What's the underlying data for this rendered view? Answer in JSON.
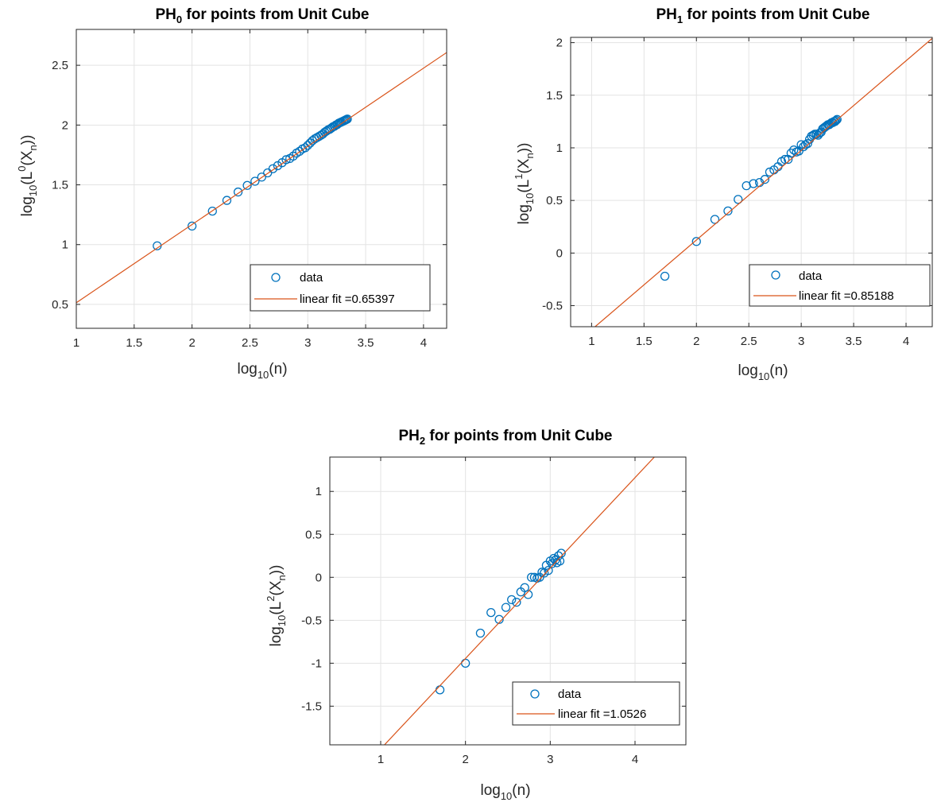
{
  "chart_data": [
    {
      "type": "scatter",
      "title_main": "PH",
      "title_sub": "0",
      "title_rest": " for points from Unit Cube",
      "xlabel_main": "log",
      "xlabel_sub": "10",
      "xlabel_rest": "(n)",
      "ylabel_main": "log",
      "ylabel_sub": "10",
      "ylabel_mid": "(L",
      "ylabel_sup": "0",
      "ylabel_after": "(X",
      "ylabel_sub2": "n",
      "ylabel_end": "))",
      "xlim": [
        1,
        4.2
      ],
      "ylim": [
        0.3,
        2.8
      ],
      "xticks": [
        1,
        1.5,
        2,
        2.5,
        3,
        3.5,
        4
      ],
      "xtick_labels": [
        "1",
        "1.5",
        "2",
        "2.5",
        "3",
        "3.5",
        "4"
      ],
      "yticks": [
        0.5,
        1,
        1.5,
        2,
        2.5
      ],
      "ytick_labels": [
        "0.5",
        "1",
        "1.5",
        "2",
        "2.5"
      ],
      "grid": true,
      "legend_position": "bottom-right",
      "legend": [
        "data",
        "linear fit =0.65397"
      ],
      "series": [
        {
          "kind": "data",
          "color": "#0072BD",
          "x": [
            1.699,
            2.0,
            2.176,
            2.301,
            2.398,
            2.477,
            2.544,
            2.602,
            2.653,
            2.699,
            2.74,
            2.778,
            2.813,
            2.845,
            2.875,
            2.903,
            2.929,
            2.954,
            2.978,
            3.0,
            3.021,
            3.041,
            3.061,
            3.079,
            3.097,
            3.114,
            3.13,
            3.146,
            3.161,
            3.176,
            3.19,
            3.204,
            3.217,
            3.23,
            3.243,
            3.255,
            3.267,
            3.279,
            3.29,
            3.301,
            3.312,
            3.322,
            3.332,
            3.342
          ],
          "y": [
            0.99,
            1.155,
            1.28,
            1.37,
            1.44,
            1.495,
            1.53,
            1.565,
            1.6,
            1.635,
            1.66,
            1.685,
            1.71,
            1.72,
            1.74,
            1.765,
            1.78,
            1.8,
            1.81,
            1.83,
            1.85,
            1.87,
            1.885,
            1.895,
            1.905,
            1.915,
            1.925,
            1.94,
            1.95,
            1.96,
            1.965,
            1.975,
            1.985,
            1.99,
            2.0,
            2.005,
            2.015,
            2.02,
            2.025,
            2.03,
            2.035,
            2.04,
            2.045,
            2.05
          ]
        },
        {
          "kind": "fit",
          "color": "#D95319",
          "slope": 0.65397,
          "intercept": -0.14
        }
      ]
    },
    {
      "type": "scatter",
      "title_main": "PH",
      "title_sub": "1",
      "title_rest": " for points from Unit Cube",
      "xlabel_main": "log",
      "xlabel_sub": "10",
      "xlabel_rest": "(n)",
      "ylabel_main": "log",
      "ylabel_sub": "10",
      "ylabel_mid": "(L",
      "ylabel_sup": "1",
      "ylabel_after": "(X",
      "ylabel_sub2": "n",
      "ylabel_end": "))",
      "xlim": [
        0.8,
        4.25
      ],
      "ylim": [
        -0.7,
        2.05
      ],
      "xticks": [
        1,
        1.5,
        2,
        2.5,
        3,
        3.5,
        4
      ],
      "xtick_labels": [
        "1",
        "1.5",
        "2",
        "2.5",
        "3",
        "3.5",
        "4"
      ],
      "yticks": [
        -0.5,
        0,
        0.5,
        1,
        1.5,
        2
      ],
      "ytick_labels": [
        "-0.5",
        "0",
        "0.5",
        "1",
        "1.5",
        "2"
      ],
      "grid": true,
      "legend_position": "bottom-right",
      "legend": [
        "data",
        "linear fit =0.85188"
      ],
      "series": [
        {
          "kind": "data",
          "color": "#0072BD",
          "x": [
            1.699,
            2.0,
            2.176,
            2.301,
            2.398,
            2.477,
            2.544,
            2.602,
            2.653,
            2.699,
            2.74,
            2.778,
            2.813,
            2.845,
            2.875,
            2.903,
            2.929,
            2.954,
            2.978,
            3.0,
            3.021,
            3.041,
            3.061,
            3.079,
            3.097,
            3.114,
            3.13,
            3.146,
            3.161,
            3.176,
            3.19,
            3.204,
            3.217,
            3.23,
            3.243,
            3.255,
            3.267,
            3.279,
            3.29,
            3.301,
            3.312,
            3.322,
            3.332,
            3.342
          ],
          "y": [
            -0.22,
            0.11,
            0.32,
            0.4,
            0.51,
            0.64,
            0.66,
            0.67,
            0.7,
            0.77,
            0.79,
            0.82,
            0.87,
            0.89,
            0.89,
            0.95,
            0.98,
            0.96,
            0.97,
            1.03,
            1.01,
            1.03,
            1.04,
            1.08,
            1.11,
            1.12,
            1.13,
            1.13,
            1.12,
            1.14,
            1.15,
            1.18,
            1.19,
            1.2,
            1.21,
            1.22,
            1.22,
            1.23,
            1.24,
            1.24,
            1.25,
            1.25,
            1.26,
            1.27
          ]
        },
        {
          "kind": "fit",
          "color": "#D95319",
          "slope": 0.85188,
          "intercept": -1.58
        }
      ]
    },
    {
      "type": "scatter",
      "title_main": "PH",
      "title_sub": "2",
      "title_rest": " for points from Unit Cube",
      "xlabel_main": "log",
      "xlabel_sub": "10",
      "xlabel_rest": "(n)",
      "ylabel_main": "log",
      "ylabel_sub": "10",
      "ylabel_mid": "(L",
      "ylabel_sup": "2",
      "ylabel_after": "(X",
      "ylabel_sub2": "n",
      "ylabel_end": "))",
      "xlim": [
        0.4,
        4.6
      ],
      "ylim": [
        -1.95,
        1.4
      ],
      "xticks": [
        1,
        2,
        3,
        4
      ],
      "xtick_labels": [
        "1",
        "2",
        "3",
        "4"
      ],
      "yticks": [
        -1.5,
        -1,
        -0.5,
        0,
        0.5,
        1
      ],
      "ytick_labels": [
        "-1.5",
        "-1",
        "-0.5",
        "0",
        "0.5",
        "1"
      ],
      "grid": true,
      "legend_position": "bottom-right",
      "legend": [
        "data",
        "linear fit =1.0526"
      ],
      "series": [
        {
          "kind": "data",
          "color": "#0072BD",
          "x": [
            1.699,
            2.0,
            2.176,
            2.301,
            2.398,
            2.477,
            2.544,
            2.602,
            2.653,
            2.699,
            2.74,
            2.778,
            2.813,
            2.845,
            2.875,
            2.903,
            2.929,
            2.954,
            2.978,
            3.0,
            3.021,
            3.041,
            3.061,
            3.079,
            3.097,
            3.114,
            3.13
          ],
          "y": [
            -1.31,
            -1.0,
            -0.65,
            -0.41,
            -0.49,
            -0.35,
            -0.26,
            -0.29,
            -0.17,
            -0.12,
            -0.2,
            0.0,
            0.0,
            -0.01,
            0.0,
            0.06,
            0.05,
            0.14,
            0.08,
            0.19,
            0.16,
            0.22,
            0.2,
            0.17,
            0.25,
            0.19,
            0.28
          ]
        },
        {
          "kind": "fit",
          "color": "#D95319",
          "slope": 1.0526,
          "intercept": -3.05
        }
      ]
    }
  ]
}
